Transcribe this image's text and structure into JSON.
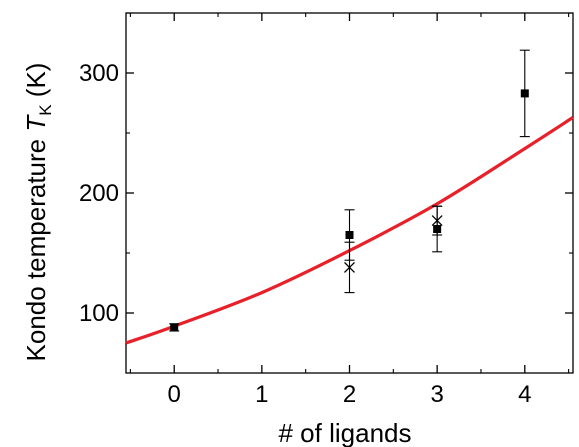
{
  "chart_data": {
    "type": "scatter",
    "title": "",
    "xlabel": "# of ligands",
    "ylabel": {
      "prefix": "Kondo temperature ",
      "symbol": "T",
      "subscript": "K",
      "suffix": " (K)"
    },
    "xlim": [
      -0.55,
      4.55
    ],
    "ylim": [
      50,
      350
    ],
    "x_ticks": [
      0,
      1,
      2,
      3,
      4
    ],
    "x_tick_labels": [
      "0",
      "1",
      "2",
      "3",
      "4"
    ],
    "y_ticks": [
      100,
      200,
      300
    ],
    "y_tick_labels": [
      "100",
      "200",
      "300"
    ],
    "grid": false,
    "legend": "none",
    "series": [
      {
        "marker": "square",
        "color": "#000000",
        "points": [
          {
            "x": 0,
            "y": 88,
            "err": 3
          },
          {
            "x": 2,
            "y": 165,
            "err": 21
          },
          {
            "x": 3,
            "y": 170,
            "err": 19
          },
          {
            "x": 4,
            "y": 283,
            "err": 36
          }
        ]
      },
      {
        "marker": "cross",
        "color": "#000000",
        "points": [
          {
            "x": 2,
            "y": 138,
            "err": 21
          },
          {
            "x": 3,
            "y": 177,
            "err": 12
          }
        ]
      },
      {
        "type": "line",
        "color": "#e8202a",
        "points": [
          {
            "x": -0.55,
            "y": 75
          },
          {
            "x": 0,
            "y": 89
          },
          {
            "x": 1,
            "y": 117
          },
          {
            "x": 2,
            "y": 152
          },
          {
            "x": 3,
            "y": 191
          },
          {
            "x": 4,
            "y": 237
          },
          {
            "x": 4.55,
            "y": 263
          }
        ]
      }
    ]
  }
}
